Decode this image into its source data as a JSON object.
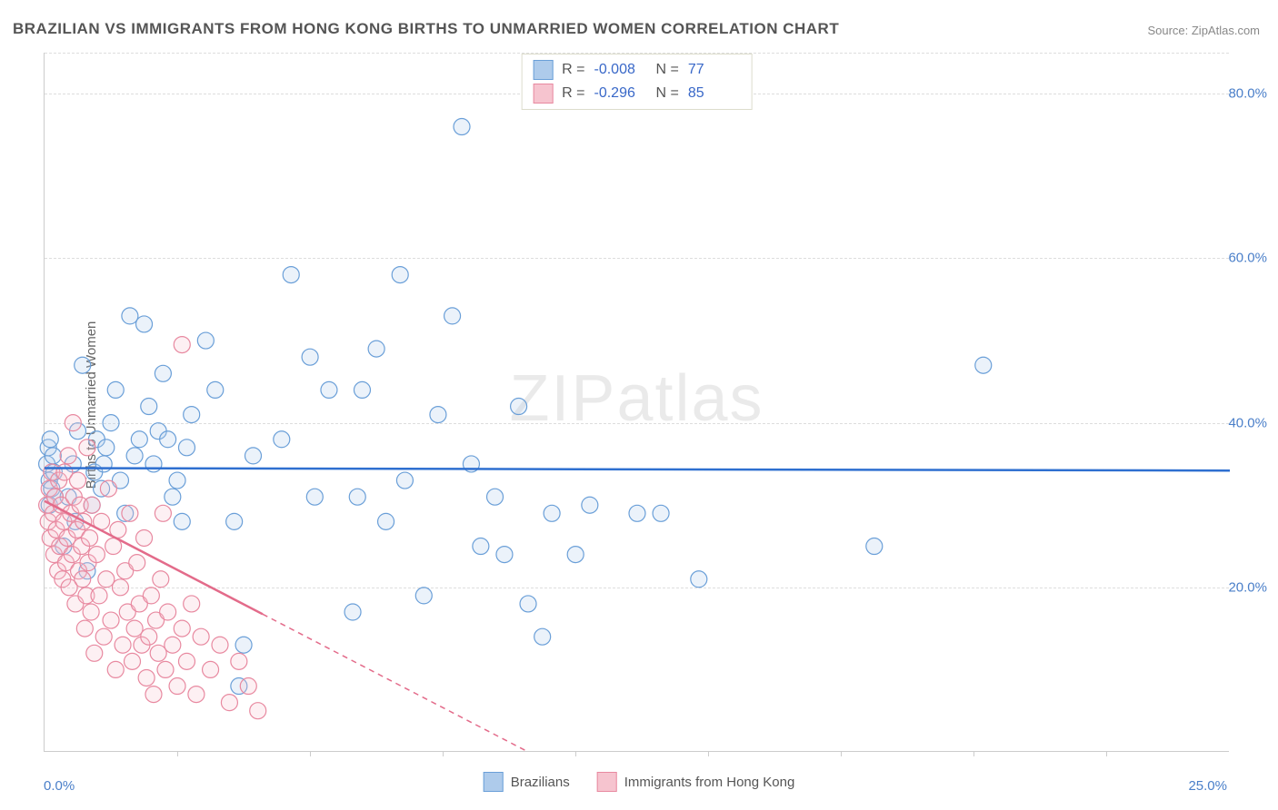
{
  "title": "BRAZILIAN VS IMMIGRANTS FROM HONG KONG BIRTHS TO UNMARRIED WOMEN CORRELATION CHART",
  "source": "Source: ZipAtlas.com",
  "ylabel": "Births to Unmarried Women",
  "watermark": "ZIPatlas",
  "chart": {
    "type": "scatter",
    "xlim": [
      0,
      25
    ],
    "ylim": [
      0,
      85
    ],
    "x_left_label": "0.0%",
    "x_right_label": "25.0%",
    "yticks": [
      20,
      40,
      60,
      80
    ],
    "ytick_labels": [
      "20.0%",
      "40.0%",
      "60.0%",
      "80.0%"
    ],
    "xticks": [
      2.8,
      5.6,
      8.4,
      11.2,
      14.0,
      16.8,
      19.6,
      22.4
    ],
    "grid_color": "#dddddd",
    "axis_color": "#cccccc",
    "background_color": "#ffffff",
    "label_color": "#4a7fc9",
    "marker_radius": 9,
    "marker_stroke_width": 1.2,
    "marker_fill_opacity": 0.25,
    "trend_line_width": 2.5,
    "trend_dash": "6,5"
  },
  "series": [
    {
      "name": "Brazilians",
      "fill": "#aecbeb",
      "stroke": "#6a9fd8",
      "trend_color": "#2e6fd0",
      "R": "-0.008",
      "N": "77",
      "trend": {
        "x1": 0,
        "y1": 34.5,
        "x2": 25,
        "y2": 34.2
      },
      "solid_until_x": 25,
      "points": [
        [
          0.05,
          35
        ],
        [
          0.08,
          37
        ],
        [
          0.1,
          33
        ],
        [
          0.12,
          38
        ],
        [
          0.1,
          30
        ],
        [
          0.15,
          32
        ],
        [
          0.18,
          36
        ],
        [
          0.2,
          34
        ],
        [
          0.22,
          31
        ],
        [
          0.4,
          25
        ],
        [
          0.5,
          31
        ],
        [
          0.6,
          35
        ],
        [
          0.65,
          28
        ],
        [
          0.7,
          39
        ],
        [
          0.8,
          47
        ],
        [
          0.9,
          22
        ],
        [
          1.0,
          30
        ],
        [
          1.05,
          34
        ],
        [
          1.1,
          38
        ],
        [
          1.2,
          32
        ],
        [
          1.25,
          35
        ],
        [
          1.3,
          37
        ],
        [
          1.4,
          40
        ],
        [
          1.5,
          44
        ],
        [
          1.6,
          33
        ],
        [
          1.7,
          29
        ],
        [
          1.8,
          53
        ],
        [
          1.9,
          36
        ],
        [
          2.0,
          38
        ],
        [
          2.1,
          52
        ],
        [
          2.2,
          42
        ],
        [
          2.3,
          35
        ],
        [
          2.4,
          39
        ],
        [
          2.5,
          46
        ],
        [
          2.6,
          38
        ],
        [
          2.7,
          31
        ],
        [
          2.8,
          33
        ],
        [
          2.9,
          28
        ],
        [
          3.0,
          37
        ],
        [
          3.1,
          41
        ],
        [
          3.4,
          50
        ],
        [
          3.6,
          44
        ],
        [
          4.0,
          28
        ],
        [
          4.1,
          8
        ],
        [
          4.2,
          13
        ],
        [
          4.4,
          36
        ],
        [
          5.0,
          38
        ],
        [
          5.2,
          58
        ],
        [
          5.6,
          48
        ],
        [
          5.7,
          31
        ],
        [
          6.0,
          44
        ],
        [
          6.5,
          17
        ],
        [
          6.6,
          31
        ],
        [
          6.7,
          44
        ],
        [
          7.0,
          49
        ],
        [
          7.2,
          28
        ],
        [
          7.5,
          58
        ],
        [
          7.6,
          33
        ],
        [
          8.0,
          19
        ],
        [
          8.3,
          41
        ],
        [
          8.6,
          53
        ],
        [
          8.8,
          76
        ],
        [
          9.0,
          35
        ],
        [
          9.2,
          25
        ],
        [
          9.5,
          31
        ],
        [
          9.7,
          24
        ],
        [
          10.0,
          42
        ],
        [
          10.2,
          18
        ],
        [
          10.5,
          14
        ],
        [
          10.7,
          29
        ],
        [
          11.2,
          24
        ],
        [
          11.5,
          30
        ],
        [
          12.5,
          29
        ],
        [
          13.0,
          29
        ],
        [
          13.8,
          21
        ],
        [
          17.5,
          25
        ],
        [
          19.8,
          47
        ]
      ]
    },
    {
      "name": "Immigrants from Hong Kong",
      "fill": "#f6c4cf",
      "stroke": "#e889a0",
      "trend_color": "#e36b8a",
      "R": "-0.296",
      "N": "85",
      "trend": {
        "x1": 0,
        "y1": 30.5,
        "x2": 10.2,
        "y2": 0
      },
      "solid_until_x": 4.6,
      "points": [
        [
          0.05,
          30
        ],
        [
          0.08,
          28
        ],
        [
          0.1,
          32
        ],
        [
          0.12,
          26
        ],
        [
          0.15,
          34
        ],
        [
          0.18,
          29
        ],
        [
          0.2,
          24
        ],
        [
          0.22,
          31
        ],
        [
          0.25,
          27
        ],
        [
          0.28,
          22
        ],
        [
          0.3,
          33
        ],
        [
          0.32,
          25
        ],
        [
          0.35,
          30
        ],
        [
          0.38,
          21
        ],
        [
          0.4,
          28
        ],
        [
          0.42,
          34
        ],
        [
          0.45,
          23
        ],
        [
          0.48,
          26
        ],
        [
          0.5,
          36
        ],
        [
          0.52,
          20
        ],
        [
          0.55,
          29
        ],
        [
          0.58,
          24
        ],
        [
          0.6,
          40
        ],
        [
          0.62,
          31
        ],
        [
          0.65,
          18
        ],
        [
          0.68,
          27
        ],
        [
          0.7,
          33
        ],
        [
          0.72,
          22
        ],
        [
          0.75,
          30
        ],
        [
          0.78,
          25
        ],
        [
          0.8,
          21
        ],
        [
          0.82,
          28
        ],
        [
          0.85,
          15
        ],
        [
          0.88,
          19
        ],
        [
          0.9,
          37
        ],
        [
          0.92,
          23
        ],
        [
          0.95,
          26
        ],
        [
          0.98,
          17
        ],
        [
          1.0,
          30
        ],
        [
          1.05,
          12
        ],
        [
          1.1,
          24
        ],
        [
          1.15,
          19
        ],
        [
          1.2,
          28
        ],
        [
          1.25,
          14
        ],
        [
          1.3,
          21
        ],
        [
          1.35,
          32
        ],
        [
          1.4,
          16
        ],
        [
          1.45,
          25
        ],
        [
          1.5,
          10
        ],
        [
          1.55,
          27
        ],
        [
          1.6,
          20
        ],
        [
          1.65,
          13
        ],
        [
          1.7,
          22
        ],
        [
          1.75,
          17
        ],
        [
          1.8,
          29
        ],
        [
          1.85,
          11
        ],
        [
          1.9,
          15
        ],
        [
          1.95,
          23
        ],
        [
          2.0,
          18
        ],
        [
          2.05,
          13
        ],
        [
          2.1,
          26
        ],
        [
          2.15,
          9
        ],
        [
          2.2,
          14
        ],
        [
          2.25,
          19
        ],
        [
          2.3,
          7
        ],
        [
          2.35,
          16
        ],
        [
          2.4,
          12
        ],
        [
          2.45,
          21
        ],
        [
          2.5,
          29
        ],
        [
          2.55,
          10
        ],
        [
          2.6,
          17
        ],
        [
          2.7,
          13
        ],
        [
          2.8,
          8
        ],
        [
          2.9,
          15
        ],
        [
          3.0,
          11
        ],
        [
          3.1,
          18
        ],
        [
          3.2,
          7
        ],
        [
          3.3,
          14
        ],
        [
          3.5,
          10
        ],
        [
          3.7,
          13
        ],
        [
          3.9,
          6
        ],
        [
          4.1,
          11
        ],
        [
          4.3,
          8
        ],
        [
          4.5,
          5
        ],
        [
          2.9,
          49.5
        ]
      ]
    }
  ],
  "legend": {
    "items": [
      {
        "label": "Brazilians",
        "fill": "#aecbeb",
        "stroke": "#6a9fd8"
      },
      {
        "label": "Immigrants from Hong Kong",
        "fill": "#f6c4cf",
        "stroke": "#e889a0"
      }
    ]
  }
}
